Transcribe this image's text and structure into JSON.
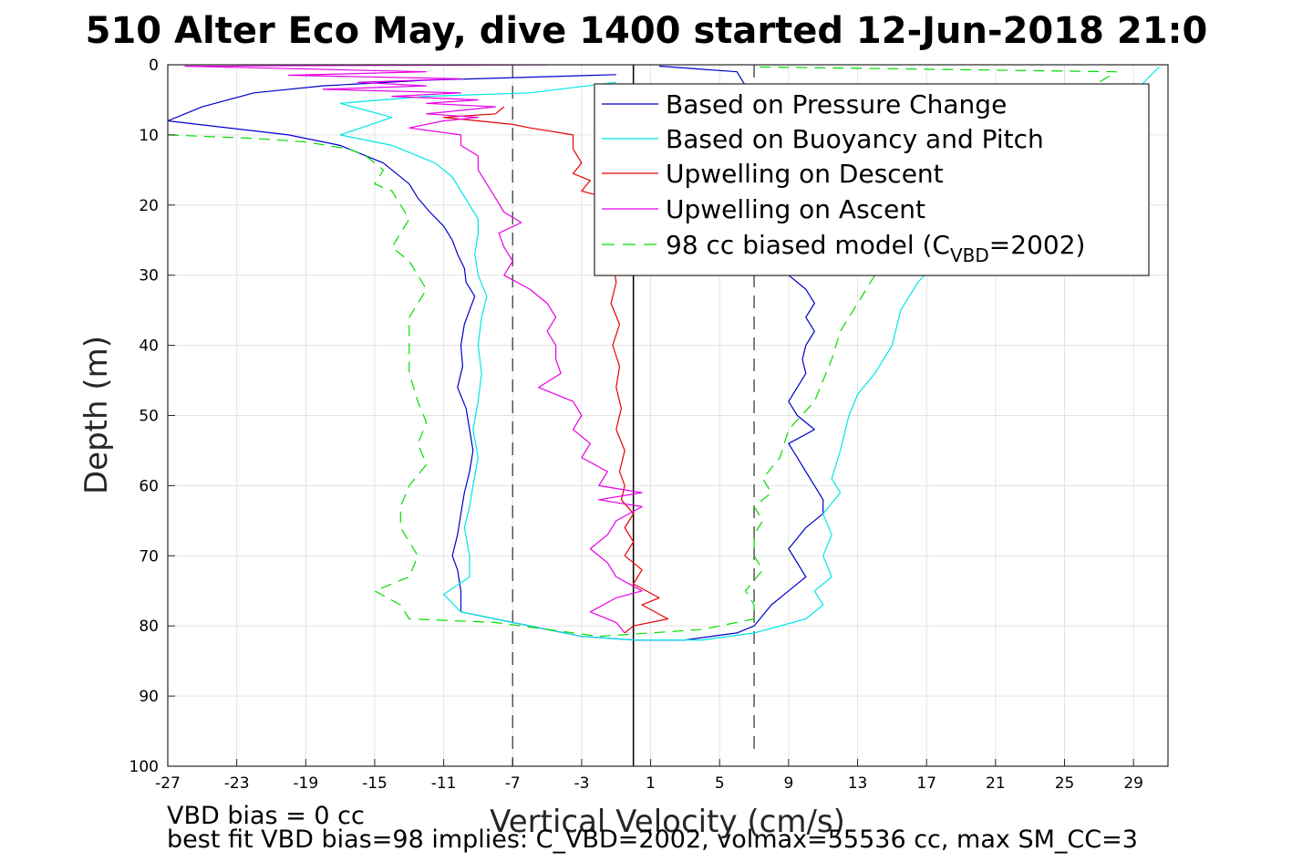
{
  "title": "510 Alter Eco May, dive 1400 started 12-Jun-2018 21:0",
  "xlabel": "Vertical Velocity (cm/s)",
  "ylabel": "Depth (m)",
  "legend": {
    "items": [
      {
        "label": "Based on Pressure Change",
        "color": "#0000cc",
        "style": "solid"
      },
      {
        "label": "Based on Buoyancy and Pitch",
        "color": "#00e6e6",
        "style": "solid"
      },
      {
        "label": "Upwelling on Descent",
        "color": "#e60000",
        "style": "solid"
      },
      {
        "label": "Upwelling on Ascent",
        "color": "#e600e6",
        "style": "solid"
      },
      {
        "label": "98 cc biased model (C",
        "sub": "VBD",
        "suffix": "=2002)",
        "color": "#00dd00",
        "style": "dashed"
      }
    ]
  },
  "notes": {
    "line1": "VBD bias = 0 cc",
    "line2": "best fit VBD bias=98 implies: C_VBD=2002, volmax=55536 cc, max SM_CC=3"
  },
  "chart_data": {
    "type": "line",
    "title": "510 Alter Eco May, dive 1400 started 12-Jun-2018 21:0",
    "xlabel": "Vertical Velocity (cm/s)",
    "ylabel": "Depth (m)",
    "xlim": [
      -27,
      31
    ],
    "ylim": [
      0,
      100
    ],
    "y_reversed": true,
    "grid": true,
    "legend_position": "top-right",
    "xticks": [
      -27,
      -23,
      -19,
      -15,
      -11,
      -7,
      -3,
      1,
      5,
      9,
      13,
      17,
      21,
      25,
      29
    ],
    "yticks": [
      0,
      10,
      20,
      30,
      40,
      50,
      60,
      70,
      80,
      90,
      100
    ],
    "vlines": [
      {
        "x": -7,
        "style": "dashed",
        "color": "#555555",
        "y_range": [
          0,
          100
        ]
      },
      {
        "x": 0,
        "style": "solid",
        "color": "#000000",
        "y_range": [
          0,
          100
        ]
      },
      {
        "x": 7,
        "style": "dashed",
        "color": "#555555",
        "y_range": [
          0,
          98
        ]
      }
    ],
    "series": [
      {
        "name": "Based on Pressure Change",
        "color": "#0000cc",
        "dash": false,
        "points": [
          [
            -1.0,
            1.4
          ],
          [
            -12.0,
            2.2
          ],
          [
            -18.0,
            3.0
          ],
          [
            -22.0,
            4.0
          ],
          [
            -25.0,
            6.0
          ],
          [
            -27.0,
            8.0
          ],
          [
            -20.0,
            10.0
          ],
          [
            -17.0,
            11.5
          ],
          [
            -16.0,
            12.5
          ],
          [
            -14.5,
            14.0
          ],
          [
            -14.0,
            15.0
          ],
          [
            -13.0,
            17.0
          ],
          [
            -12.5,
            19.0
          ],
          [
            -11.8,
            21.0
          ],
          [
            -11.0,
            23.0
          ],
          [
            -10.5,
            25.0
          ],
          [
            -10.2,
            27.0
          ],
          [
            -9.8,
            29.0
          ],
          [
            -9.7,
            31.0
          ],
          [
            -9.2,
            33.0
          ],
          [
            -9.5,
            35.0
          ],
          [
            -9.8,
            37.0
          ],
          [
            -10.0,
            40.0
          ],
          [
            -9.9,
            43.0
          ],
          [
            -10.2,
            46.0
          ],
          [
            -9.7,
            49.0
          ],
          [
            -9.5,
            52.0
          ],
          [
            -9.3,
            55.0
          ],
          [
            -9.5,
            58.0
          ],
          [
            -9.8,
            61.0
          ],
          [
            -10.0,
            64.0
          ],
          [
            -10.2,
            67.0
          ],
          [
            -10.5,
            70.0
          ],
          [
            -10.2,
            72.0
          ],
          [
            -10.0,
            75.0
          ],
          [
            -10.0,
            78.0
          ],
          [
            -7.0,
            79.5
          ],
          [
            -4.0,
            81.0
          ],
          [
            -3.0,
            81.5
          ],
          [
            0.0,
            82.0
          ],
          [
            3.0,
            82.0
          ],
          [
            6.0,
            81.0
          ],
          [
            7.0,
            80.0
          ],
          [
            8.0,
            77.0
          ],
          [
            9.0,
            75.0
          ],
          [
            10.0,
            73.0
          ],
          [
            9.5,
            71.0
          ],
          [
            9.0,
            69.0
          ],
          [
            10.0,
            66.0
          ],
          [
            11.0,
            64.0
          ],
          [
            11.0,
            62.0
          ],
          [
            10.5,
            60.0
          ],
          [
            10.0,
            58.0
          ],
          [
            9.5,
            56.0
          ],
          [
            9.0,
            54.0
          ],
          [
            10.5,
            52.0
          ],
          [
            9.5,
            50.0
          ],
          [
            9.0,
            48.0
          ],
          [
            9.5,
            46.0
          ],
          [
            10.0,
            44.0
          ],
          [
            9.8,
            42.0
          ],
          [
            10.0,
            40.0
          ],
          [
            10.5,
            38.0
          ],
          [
            10.0,
            36.0
          ],
          [
            10.5,
            34.0
          ],
          [
            10.0,
            32.0
          ],
          [
            9.0,
            30.0
          ],
          [
            7.0,
            20.0
          ],
          [
            6.5,
            10.0
          ],
          [
            7.0,
            5.0
          ],
          [
            6.0,
            1.0
          ],
          [
            1.5,
            0.2
          ]
        ]
      },
      {
        "name": "Based on Buoyancy and Pitch",
        "color": "#00e6e6",
        "dash": false,
        "points": [
          [
            -1.0,
            2.5
          ],
          [
            -6.0,
            4.0
          ],
          [
            -12.0,
            4.5
          ],
          [
            -17.0,
            5.5
          ],
          [
            -14.0,
            7.5
          ],
          [
            -17.0,
            10.0
          ],
          [
            -14.0,
            11.5
          ],
          [
            -13.0,
            12.5
          ],
          [
            -11.5,
            14.0
          ],
          [
            -10.5,
            16.0
          ],
          [
            -10.0,
            18.0
          ],
          [
            -9.5,
            20.0
          ],
          [
            -9.0,
            22.0
          ],
          [
            -9.0,
            24.0
          ],
          [
            -9.2,
            27.0
          ],
          [
            -9.0,
            30.0
          ],
          [
            -8.5,
            33.0
          ],
          [
            -8.8,
            36.0
          ],
          [
            -9.0,
            40.0
          ],
          [
            -8.8,
            44.0
          ],
          [
            -9.0,
            48.0
          ],
          [
            -9.3,
            52.0
          ],
          [
            -9.0,
            56.0
          ],
          [
            -9.3,
            60.0
          ],
          [
            -9.5,
            63.0
          ],
          [
            -9.8,
            66.0
          ],
          [
            -9.5,
            70.0
          ],
          [
            -9.5,
            73.0
          ],
          [
            -11.0,
            75.5
          ],
          [
            -10.0,
            78.0
          ],
          [
            -8.0,
            79.0
          ],
          [
            -6.0,
            80.0
          ],
          [
            -3.0,
            81.5
          ],
          [
            0.0,
            82.0
          ],
          [
            4.0,
            82.0
          ],
          [
            7.0,
            81.0
          ],
          [
            10.0,
            79.0
          ],
          [
            11.0,
            77.0
          ],
          [
            10.5,
            75.0
          ],
          [
            11.5,
            73.0
          ],
          [
            11.0,
            70.0
          ],
          [
            11.5,
            67.0
          ],
          [
            11.0,
            64.0
          ],
          [
            12.0,
            61.0
          ],
          [
            11.5,
            59.0
          ],
          [
            12.0,
            55.0
          ],
          [
            12.5,
            50.0
          ],
          [
            13.0,
            47.0
          ],
          [
            14.0,
            44.0
          ],
          [
            15.0,
            40.0
          ],
          [
            15.5,
            35.0
          ],
          [
            16.5,
            31.0
          ],
          [
            18.0,
            27.0
          ],
          [
            20.0,
            20.0
          ],
          [
            25.0,
            10.0
          ],
          [
            29.0,
            4.0
          ],
          [
            30.5,
            0.3
          ]
        ]
      },
      {
        "name": "Upwelling on Descent",
        "color": "#e60000",
        "dash": false,
        "points": [
          [
            -7.5,
            6.0
          ],
          [
            -8.0,
            7.0
          ],
          [
            -11.0,
            7.5
          ],
          [
            -9.0,
            8.0
          ],
          [
            -7.0,
            8.5
          ],
          [
            -6.0,
            9.0
          ],
          [
            -3.5,
            10.0
          ],
          [
            -3.5,
            12.0
          ],
          [
            -3.0,
            14.0
          ],
          [
            -3.5,
            15.5
          ],
          [
            -2.5,
            16.5
          ],
          [
            -3.0,
            18.0
          ],
          [
            -1.5,
            19.0
          ],
          [
            -1.5,
            22.0
          ],
          [
            -1.0,
            25.0
          ],
          [
            -1.2,
            28.0
          ],
          [
            -1.0,
            31.0
          ],
          [
            -1.3,
            34.0
          ],
          [
            -0.8,
            37.0
          ],
          [
            -1.2,
            40.0
          ],
          [
            -0.8,
            43.0
          ],
          [
            -1.0,
            46.0
          ],
          [
            -0.7,
            49.0
          ],
          [
            -1.0,
            52.0
          ],
          [
            -0.5,
            55.0
          ],
          [
            -0.8,
            58.0
          ],
          [
            -0.5,
            60.0
          ],
          [
            -0.7,
            62.0
          ],
          [
            0.0,
            64.0
          ],
          [
            -0.5,
            66.0
          ],
          [
            0.0,
            68.0
          ],
          [
            -0.5,
            70.0
          ],
          [
            0.5,
            72.0
          ],
          [
            0.0,
            74.0
          ],
          [
            1.5,
            76.0
          ],
          [
            0.5,
            77.0
          ],
          [
            2.0,
            79.0
          ],
          [
            0.0,
            80.0
          ],
          [
            -0.5,
            81.0
          ]
        ]
      },
      {
        "name": "Upwelling on Ascent",
        "color": "#e600e6",
        "dash": false,
        "points": [
          [
            -5.0,
            0.0
          ],
          [
            -26.0,
            0.2
          ],
          [
            -12.0,
            1.0
          ],
          [
            -20.0,
            1.5
          ],
          [
            -10.0,
            2.0
          ],
          [
            -16.0,
            2.5
          ],
          [
            -12.0,
            3.0
          ],
          [
            -18.0,
            3.5
          ],
          [
            -10.0,
            4.0
          ],
          [
            -14.0,
            4.5
          ],
          [
            -9.0,
            5.0
          ],
          [
            -12.0,
            5.5
          ],
          [
            -8.0,
            6.0
          ],
          [
            -10.0,
            6.5
          ],
          [
            -12.0,
            7.0
          ],
          [
            -9.0,
            7.5
          ],
          [
            -11.0,
            8.0
          ],
          [
            -13.0,
            9.0
          ],
          [
            -10.0,
            10.0
          ],
          [
            -10.0,
            11.5
          ],
          [
            -9.0,
            13.0
          ],
          [
            -9.0,
            15.0
          ],
          [
            -8.5,
            17.0
          ],
          [
            -8.0,
            19.0
          ],
          [
            -7.5,
            21.0
          ],
          [
            -6.5,
            22.5
          ],
          [
            -7.8,
            24.0
          ],
          [
            -7.5,
            26.0
          ],
          [
            -7.0,
            28.0
          ],
          [
            -7.5,
            30.0
          ],
          [
            -6.0,
            32.0
          ],
          [
            -5.0,
            34.0
          ],
          [
            -4.5,
            36.0
          ],
          [
            -5.0,
            38.0
          ],
          [
            -4.5,
            40.0
          ],
          [
            -4.5,
            42.0
          ],
          [
            -4.2,
            44.0
          ],
          [
            -5.5,
            46.0
          ],
          [
            -3.5,
            48.0
          ],
          [
            -3.0,
            50.0
          ],
          [
            -3.5,
            52.0
          ],
          [
            -2.5,
            54.0
          ],
          [
            -3.0,
            56.0
          ],
          [
            -1.5,
            58.0
          ],
          [
            -2.0,
            60.0
          ],
          [
            0.5,
            61.0
          ],
          [
            -2.0,
            62.0
          ],
          [
            0.5,
            63.0
          ],
          [
            -1.0,
            65.0
          ],
          [
            -1.5,
            67.0
          ],
          [
            -2.5,
            69.0
          ],
          [
            -1.5,
            71.0
          ],
          [
            -1.0,
            73.0
          ],
          [
            0.5,
            75.0
          ],
          [
            -1.0,
            76.0
          ],
          [
            -2.5,
            78.0
          ],
          [
            -1.0,
            79.5
          ],
          [
            -0.5,
            81.0
          ]
        ]
      },
      {
        "name": "98 cc biased model (CVBD=2002)",
        "color": "#00dd00",
        "dash": true,
        "points": [
          [
            -27.0,
            10.0
          ],
          [
            -22.0,
            10.5
          ],
          [
            -19.0,
            11.0
          ],
          [
            -16.5,
            12.0
          ],
          [
            -15.5,
            13.0
          ],
          [
            -14.5,
            15.0
          ],
          [
            -15.0,
            17.0
          ],
          [
            -14.0,
            18.0
          ],
          [
            -13.5,
            20.0
          ],
          [
            -13.0,
            22.0
          ],
          [
            -13.5,
            24.0
          ],
          [
            -14.0,
            26.0
          ],
          [
            -13.0,
            28.0
          ],
          [
            -12.5,
            30.0
          ],
          [
            -12.0,
            32.0
          ],
          [
            -12.5,
            34.0
          ],
          [
            -13.0,
            36.0
          ],
          [
            -13.0,
            40.0
          ],
          [
            -13.0,
            44.0
          ],
          [
            -12.5,
            48.0
          ],
          [
            -12.0,
            51.0
          ],
          [
            -12.5,
            54.0
          ],
          [
            -12.0,
            57.0
          ],
          [
            -13.0,
            60.0
          ],
          [
            -13.5,
            63.0
          ],
          [
            -13.5,
            66.0
          ],
          [
            -12.5,
            70.0
          ],
          [
            -13.0,
            73.0
          ],
          [
            -15.0,
            75.0
          ],
          [
            -13.5,
            77.0
          ],
          [
            -13.0,
            79.0
          ],
          [
            -8.0,
            79.5
          ],
          [
            -5.0,
            80.5
          ],
          [
            -2.0,
            81.5
          ],
          [
            1.0,
            81.0
          ],
          [
            4.0,
            80.5
          ],
          [
            6.0,
            79.5
          ],
          [
            7.0,
            79.0
          ],
          [
            7.0,
            77.0
          ],
          [
            6.5,
            75.0
          ],
          [
            7.5,
            72.0
          ],
          [
            7.0,
            70.0
          ],
          [
            7.0,
            67.0
          ],
          [
            7.5,
            65.0
          ],
          [
            7.0,
            63.0
          ],
          [
            8.0,
            61.0
          ],
          [
            7.5,
            59.0
          ],
          [
            8.5,
            56.0
          ],
          [
            9.0,
            52.0
          ],
          [
            10.5,
            48.0
          ],
          [
            11.0,
            45.0
          ],
          [
            11.5,
            42.0
          ],
          [
            12.0,
            38.0
          ],
          [
            13.0,
            34.0
          ],
          [
            14.0,
            30.0
          ],
          [
            16.0,
            26.0
          ],
          [
            18.0,
            20.0
          ],
          [
            22.0,
            10.0
          ],
          [
            26.0,
            4.0
          ],
          [
            28.0,
            1.0
          ],
          [
            7.0,
            0.3
          ]
        ]
      }
    ]
  }
}
